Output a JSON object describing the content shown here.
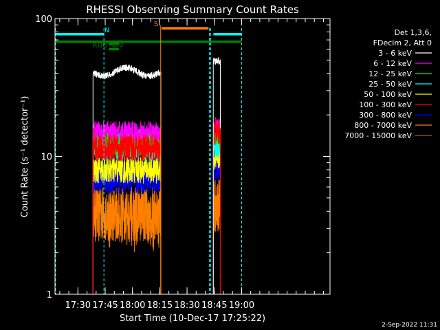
{
  "chart_data": {
    "type": "line",
    "title": "RHESSI Observing Summary Count Rates",
    "xlabel": "Start Time (10-Dec-17 17:25:22)",
    "ylabel": "Count Rate (s⁻¹ detector⁻¹)",
    "y_scale": "log",
    "ylim": [
      1,
      100
    ],
    "xlim_minutes": [
      17.4,
      168.6
    ],
    "x_ticks": [
      {
        "label": "17:30",
        "min": 30
      },
      {
        "label": "17:45",
        "min": 45
      },
      {
        "label": "18:00",
        "min": 60
      },
      {
        "label": "18:15",
        "min": 75
      },
      {
        "label": "18:30",
        "min": 90
      },
      {
        "label": "18:45",
        "min": 105
      },
      {
        "label": "19:00",
        "min": 120
      }
    ],
    "y_ticks": [
      {
        "label": "1",
        "value": 1
      },
      {
        "label": "10",
        "value": 10
      },
      {
        "label": "100",
        "value": 100
      }
    ],
    "legend_header": [
      "Det 1,3,6,",
      "FDecim 2, Att 0"
    ],
    "legend_placement": "right",
    "series": [
      {
        "name": "3 - 6 keV",
        "color": "#ffffff",
        "level": 41,
        "level2": 46,
        "noise": 0.06
      },
      {
        "name": "6 - 12 keV",
        "color": "#ff00ff",
        "level": 15,
        "level2": 16,
        "noise": 0.08
      },
      {
        "name": "12 - 25 keV",
        "color": "#00ff00",
        "level": 12.5,
        "level2": 14,
        "noise": 0.1
      },
      {
        "name": "25 - 50 keV",
        "color": "#00ffff",
        "level": 11.5,
        "level2": 12,
        "noise": 0.1
      },
      {
        "name": "50 - 100 keV",
        "color": "#ffff00",
        "level": 8,
        "level2": 10,
        "noise": 0.1
      },
      {
        "name": "100 - 300 keV",
        "color": "#ff0000",
        "level": 11.5,
        "level2": 15,
        "noise": 0.1
      },
      {
        "name": "300 - 800 keV",
        "color": "#0000ff",
        "level": 7,
        "level2": 8.5,
        "noise": 0.12
      },
      {
        "name": "800 - 7000 keV",
        "color": "#ff8000",
        "level": 3.8,
        "level2": 4.5,
        "noise": 0.2
      },
      {
        "name": "7000 - 15000 keV",
        "color": "#8b6b00",
        "level": 12,
        "level2": 13,
        "noise": 0.08
      }
    ],
    "data_intervals_minutes": [
      [
        38.3,
        75.6
      ],
      [
        104.4,
        108.3
      ]
    ],
    "spikes_minutes": [
      {
        "x": 38.3,
        "color": "#ff0000"
      },
      {
        "x": 75.6,
        "color": "#ff8000"
      },
      {
        "x": 108.3,
        "color": "#ff0000"
      }
    ],
    "vlines_cyan_minutes": [
      17.7,
      44.3,
      102.3,
      103.0,
      120.0
    ],
    "vline_orange_minute": 75.5,
    "flag_bars": [
      {
        "label": "N",
        "color": "#00ffff",
        "value": 77,
        "segments": [
          [
            17.6,
            44.3
          ],
          [
            104.5,
            120.0
          ]
        ],
        "label_x": 46.0
      },
      {
        "label": "S",
        "color": "#ff8000",
        "value": 85,
        "segments": [
          [
            76.0,
            101.8
          ]
        ],
        "label_x": 73.0
      },
      {
        "label": "",
        "color": "#008000",
        "value": 68,
        "segments": [
          [
            17.6,
            120.0
          ]
        ]
      },
      {
        "label": "RD0",
        "color": "#008000",
        "value": 60,
        "segments": [
          [
            47.0,
            52.5
          ]
        ],
        "label_x": 51.0
      },
      {
        "label": "RD6",
        "color": "#008000",
        "value": 66,
        "segments": [
          [
            47.0,
            52.5
          ]
        ],
        "label_x": 42.0
      }
    ],
    "grid": false
  },
  "footer_date": "2-Sep-2022 11:31"
}
